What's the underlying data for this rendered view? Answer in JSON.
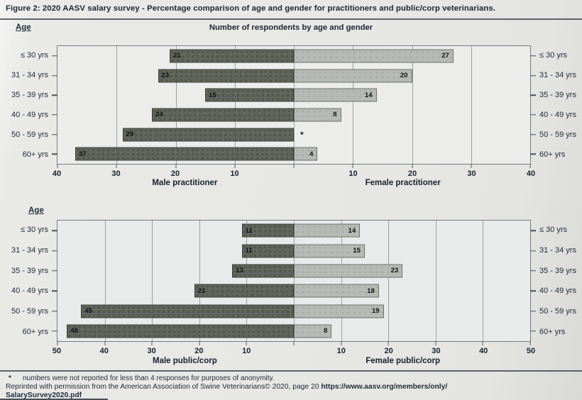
{
  "page": {
    "caption_prefix": "Figure 2:",
    "caption_text": " 2020 AASV salary survey - Percentage comparison of age and gender for practitioners and public/corp veterinarians."
  },
  "chart_data": [
    {
      "type": "bar",
      "variant": "mirrored-population-pyramid",
      "title": "Number of respondents by age and gender",
      "age_axis_label": "Age",
      "categories": [
        "≤ 30 yrs",
        "31 - 34 yrs",
        "35 - 39 yrs",
        "40 - 49 yrs",
        "50 - 59 yrs",
        "60+ yrs"
      ],
      "series": [
        {
          "name": "Male practitioner",
          "side": "left",
          "values": [
            21,
            23,
            15,
            24,
            29,
            37
          ],
          "labels": [
            "21",
            "23",
            "15",
            "24",
            "29",
            "37"
          ]
        },
        {
          "name": "Female practitioner",
          "side": "right",
          "values": [
            27,
            20,
            14,
            8,
            null,
            4
          ],
          "labels": [
            "27",
            "20",
            "14",
            "8",
            "*",
            "4"
          ]
        }
      ],
      "axis_max": 40,
      "tick_interval": 10,
      "layout": "grid on, vertical gridlines every 10, zero not labeled, age labels on both sides"
    },
    {
      "type": "bar",
      "variant": "mirrored-population-pyramid",
      "title": "",
      "age_axis_label": "Age",
      "categories": [
        "≤ 30 yrs",
        "31 - 34 yrs",
        "35 - 39 yrs",
        "40 - 49 yrs",
        "50 - 59 yrs",
        "60+ yrs"
      ],
      "series": [
        {
          "name": "Male public/corp",
          "side": "left",
          "values": [
            11,
            11,
            13,
            21,
            45,
            48
          ],
          "labels": [
            "11",
            "11",
            "13",
            "21",
            "45",
            "48"
          ]
        },
        {
          "name": "Female public/corp",
          "side": "right",
          "values": [
            14,
            15,
            23,
            18,
            19,
            8
          ],
          "labels": [
            "14",
            "15",
            "23",
            "18",
            "19",
            "8"
          ]
        }
      ],
      "axis_max": 50,
      "tick_interval": 10,
      "layout": "grid on, vertical gridlines every 10, zero not labeled, age labels on both sides"
    }
  ],
  "footnote": {
    "marker": "*",
    "text": "numbers were not reported for less than 4 responses for purposes of anonymity."
  },
  "attribution": {
    "text": "Reprinted with permission from the American Association of Swine Veterinarians© 2020, page 20 ",
    "link_line1": "https://www.aasv.org/members/only/",
    "link_line2": "SalarySurvey2020.pdf"
  },
  "colors": {
    "male_bar": "#60645a",
    "female_bar": "#b7bab4",
    "plot_bg": "#ecedeb",
    "page_bg": "#e7e7e4",
    "text": "#1d2633"
  }
}
